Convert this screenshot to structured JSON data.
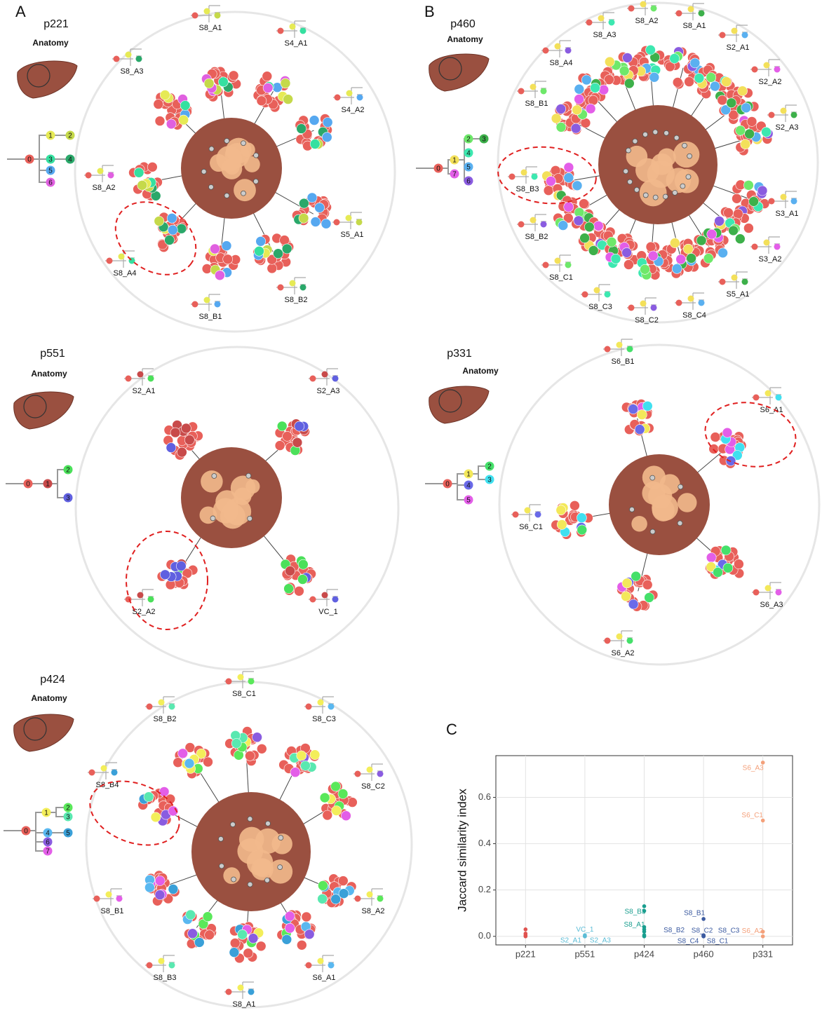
{
  "panel_labels": {
    "a": "A",
    "b": "B",
    "c": "C"
  },
  "patients": [
    {
      "id": "p221",
      "anatomy": "Anatomy",
      "clones": [
        {
          "label": "0",
          "color": "#e8605a"
        },
        {
          "label": "1",
          "color": "#e6ea55"
        },
        {
          "label": "2",
          "color": "#c5d94a"
        },
        {
          "label": "3",
          "color": "#35e0a0"
        },
        {
          "label": "4",
          "color": "#2aa86a"
        },
        {
          "label": "5",
          "color": "#56a8f0"
        },
        {
          "label": "6",
          "color": "#e060e0"
        }
      ],
      "samples": [
        "S8_A1",
        "S4_A1",
        "S8_A3",
        "S4_A2",
        "S8_A2",
        "S5_A1",
        "S8_A4",
        "S8_B2",
        "S8_B1"
      ]
    },
    {
      "id": "p460",
      "anatomy": "Anatomy",
      "clones": [
        {
          "label": "0",
          "color": "#e8605a"
        },
        {
          "label": "1",
          "color": "#f3e05a"
        },
        {
          "label": "2",
          "color": "#6ee86a"
        },
        {
          "label": "3",
          "color": "#3db04a"
        },
        {
          "label": "4",
          "color": "#3de8b0"
        },
        {
          "label": "5",
          "color": "#5ab0f0"
        },
        {
          "label": "6",
          "color": "#8a5ce0"
        },
        {
          "label": "7",
          "color": "#e35ee8"
        }
      ],
      "samples": [
        "S8_A2",
        "S8_A1",
        "S8_A3",
        "S2_A1",
        "S8_A4",
        "S2_A2",
        "S8_B1",
        "S2_A3",
        "S8_B3",
        "S3_A1",
        "S8_B2",
        "S3_A2",
        "S8_C1",
        "S5_A1",
        "S8_C3",
        "S8_C4",
        "S8_C2"
      ]
    },
    {
      "id": "p551",
      "anatomy": "Anatomy",
      "clones": [
        {
          "label": "0",
          "color": "#e8605a"
        },
        {
          "label": "1",
          "color": "#c84a4a"
        },
        {
          "label": "2",
          "color": "#4be05a"
        },
        {
          "label": "3",
          "color": "#6060e0"
        }
      ],
      "samples": [
        "S2_A1",
        "S2_A3",
        "S2_A2",
        "VC_1"
      ]
    },
    {
      "id": "p331",
      "anatomy": "Anatomy",
      "clones": [
        {
          "label": "0",
          "color": "#e8605a"
        },
        {
          "label": "1",
          "color": "#f3e85a"
        },
        {
          "label": "2",
          "color": "#45e06a"
        },
        {
          "label": "3",
          "color": "#40e0f0"
        },
        {
          "label": "4",
          "color": "#6a6ae8"
        },
        {
          "label": "5",
          "color": "#e35ee8"
        }
      ],
      "samples": [
        "S6_B1",
        "S6_A1",
        "S6_C1",
        "S6_A3",
        "S6_A2"
      ]
    },
    {
      "id": "p424",
      "anatomy": "Anatomy",
      "clones": [
        {
          "label": "0",
          "color": "#e8605a"
        },
        {
          "label": "1",
          "color": "#f3ee5a"
        },
        {
          "label": "2",
          "color": "#5ae85a"
        },
        {
          "label": "3",
          "color": "#5ae8b0"
        },
        {
          "label": "4",
          "color": "#5ab8f0"
        },
        {
          "label": "5",
          "color": "#3aa0d8"
        },
        {
          "label": "6",
          "color": "#8a5ce0"
        },
        {
          "label": "7",
          "color": "#e35ee8"
        }
      ],
      "samples": [
        "S8_C1",
        "S8_B2",
        "S8_C3",
        "S8_B4",
        "S8_C2",
        "S8_B1",
        "S8_A2",
        "S8_B3",
        "S6_A1",
        "S8_A1"
      ]
    }
  ],
  "chart_data": {
    "type": "scatter",
    "ylabel": "Jaccard similarity index",
    "categories": [
      "p221",
      "p551",
      "p424",
      "p460",
      "p331"
    ],
    "series": [
      {
        "color": "#e0524f",
        "values": [
          0.03,
          0.012,
          0.005,
          0.0
        ],
        "labels": [
          null,
          null,
          null,
          null
        ]
      },
      {
        "color": "#5bbcd6",
        "values": [
          0.005,
          0.0,
          0.0
        ],
        "labels": [
          "VC_1",
          "S2_A1",
          "S2_A3"
        ]
      },
      {
        "color": "#1a9e8f",
        "values": [
          0.13,
          0.11,
          0.04,
          0.03,
          0.02,
          0.005,
          0.0
        ],
        "labels": [
          "S8_B3",
          null,
          "S8_A1",
          null,
          null,
          null,
          null
        ]
      },
      {
        "color": "#3b5aa0",
        "values": [
          0.075,
          0.005,
          0.003,
          0.003,
          0.0,
          0.0
        ],
        "labels": [
          "S8_B1",
          "S8_B2",
          "S8_C2",
          "S8_C3",
          "S8_C4",
          "S8_C1"
        ]
      },
      {
        "color": "#f4a07a",
        "values": [
          0.75,
          0.5,
          0.02,
          0.0
        ],
        "labels": [
          "S6_A3",
          "S6_C1",
          "S6_A2",
          null
        ]
      }
    ],
    "ylim": [
      -0.037,
      0.78
    ],
    "yticks": [
      {
        "value": 0,
        "label": "0.0"
      },
      0.2,
      0.4,
      0.6
    ],
    "grid": true
  }
}
